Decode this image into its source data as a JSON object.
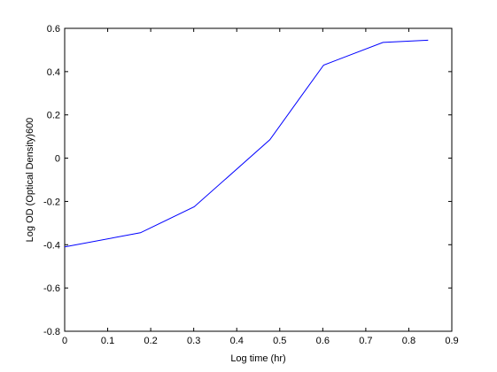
{
  "chart_data": {
    "type": "line",
    "title": "",
    "xlabel": "Log time (hr)",
    "ylabel": "Log OD (Optical Density)600",
    "xlim": [
      0,
      0.9
    ],
    "ylim": [
      -0.8,
      0.6
    ],
    "xticks": [
      0,
      0.1,
      0.2,
      0.3,
      0.4,
      0.5,
      0.6,
      0.7,
      0.8,
      0.9
    ],
    "xtick_labels": [
      "0",
      "0.1",
      "0.2",
      "0.3",
      "0.4",
      "0.5",
      "0.6",
      "0.7",
      "0.8",
      "0.9"
    ],
    "yticks": [
      -0.8,
      -0.6,
      -0.4,
      -0.2,
      0,
      0.2,
      0.4,
      0.6
    ],
    "ytick_labels": [
      "-0.8",
      "-0.6",
      "-0.4",
      "-0.2",
      "0",
      "0.2",
      "0.4",
      "0.6"
    ],
    "grid": false,
    "legend": "none",
    "series": [
      {
        "color": "#0000ff",
        "x": [
          0,
          0.176,
          0.301,
          0.477,
          0.544,
          0.602,
          0.74,
          0.845
        ],
        "y": [
          -0.41,
          -0.345,
          -0.225,
          0.085,
          0.27,
          0.43,
          0.535,
          0.545
        ]
      }
    ]
  }
}
